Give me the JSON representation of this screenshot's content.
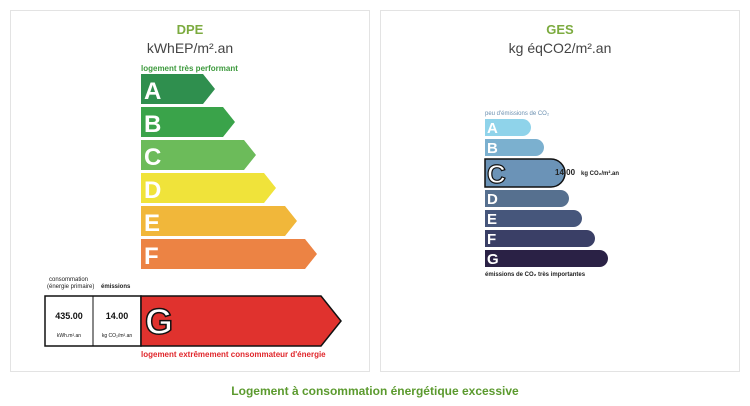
{
  "dpe": {
    "title": "DPE",
    "unit": "kWhEP/m².an",
    "top_label": "logement très performant",
    "bottom_label": "logement extrêmement consommateur d'énergie",
    "classes": [
      {
        "letter": "A",
        "color": "#2f8f4e",
        "length": 0.36
      },
      {
        "letter": "B",
        "color": "#3aa34a",
        "length": 0.46
      },
      {
        "letter": "C",
        "color": "#6cbb5a",
        "length": 0.56
      },
      {
        "letter": "D",
        "color": "#f0e33a",
        "length": 0.66
      },
      {
        "letter": "E",
        "color": "#f1b73a",
        "length": 0.76
      },
      {
        "letter": "F",
        "color": "#ec8344",
        "length": 0.86
      }
    ],
    "active": {
      "letter": "G",
      "color": "#e0322e"
    },
    "consumption_label_1": "consommation",
    "consumption_label_2": "(énergie primaire)",
    "emissions_label": "émissions",
    "consumption_value": "435.00",
    "consumption_unit": "kWh.m².an",
    "emissions_value": "14.00",
    "emissions_unit": "kg CO₂/m².an"
  },
  "ges": {
    "title": "GES",
    "unit": "kg éqCO2/m².an",
    "top_label": "peu d'émissions de CO₂",
    "bottom_label": "émissions de CO₂ très importantes",
    "classes": [
      {
        "letter": "A",
        "color": "#8fd3ea",
        "length": 0.36
      },
      {
        "letter": "B",
        "color": "#7bb0cf",
        "length": 0.46
      },
      {
        "letter": "C",
        "color": "#6b93b7",
        "length": 0.56
      },
      {
        "letter": "D",
        "color": "#56708f",
        "length": 0.66
      },
      {
        "letter": "E",
        "color": "#46567b",
        "length": 0.76
      },
      {
        "letter": "F",
        "color": "#3a3f66",
        "length": 0.86
      },
      {
        "letter": "G",
        "color": "#2a2145",
        "length": 0.96
      }
    ],
    "active_letter": "C",
    "value": "14.00",
    "value_unit": "kg CO₂/m².an"
  },
  "footer": "Logement à consommation énergétique excessive"
}
